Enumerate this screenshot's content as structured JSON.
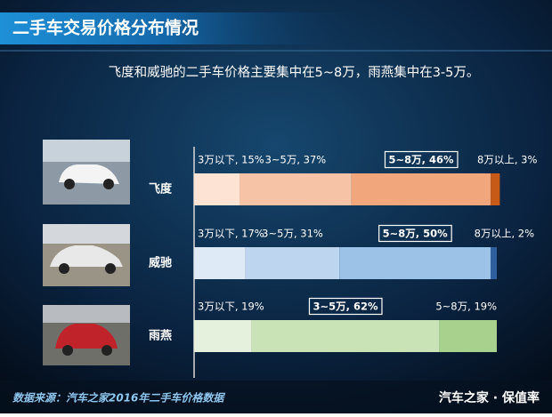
{
  "chart_data": {
    "type": "stacked_barh",
    "title": "二手车交易价格分布情况",
    "subtitle": "飞度和威驰的二手车价格主要集中在5~8万，雨燕集中在3-5万。",
    "source": "数据来源：汽车之家2016年二手车价格数据",
    "brand": "汽车之家 · 保值率",
    "categories": [
      "飞度",
      "威驰",
      "雨燕"
    ],
    "xlim": [
      0,
      100
    ],
    "series": [
      {
        "values": [
          15,
          17,
          19
        ],
        "value_labels": [
          "3万以下, 15%",
          "3万以下, 17%",
          "3万以下, 19%"
        ],
        "colors": [
          "#fde3d3",
          "#dfeaf7",
          "#e5f1dc"
        ]
      },
      {
        "values": [
          37,
          31,
          62
        ],
        "value_labels": [
          "3~5万, 37%",
          "3~5万, 31%",
          "3~5万, 62%"
        ],
        "colors": [
          "#f6c3a6",
          "#bdd5ef",
          "#c9e3b7"
        ]
      },
      {
        "values": [
          46,
          50,
          19
        ],
        "value_labels": [
          "5~8万, 46%",
          "5~8万, 50%",
          "5~8万, 19%"
        ],
        "colors": [
          "#f2a67b",
          "#9dc2e7",
          "#a8d18d"
        ]
      },
      {
        "values": [
          3,
          2,
          null
        ],
        "value_labels": [
          "8万以上, 3%",
          "8万以上, 2%",
          null
        ],
        "colors": [
          "#c65a16",
          "#2f5f9d",
          null
        ]
      }
    ]
  }
}
